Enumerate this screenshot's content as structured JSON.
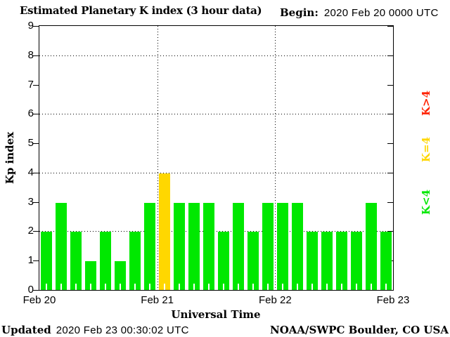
{
  "header": {
    "title": "Estimated Planetary K index (3 hour data)",
    "begin_label": "Begin:",
    "begin_value": "2020 Feb 20 0000 UTC"
  },
  "chart_data": {
    "type": "bar",
    "title": "Estimated Planetary K index (3 hour data)",
    "begin": "2020 Feb 20 0000 UTC",
    "xlabel": "Universal Time",
    "ylabel": "Kp index",
    "ylim": [
      0,
      9
    ],
    "yticks": [
      0,
      1,
      2,
      3,
      4,
      5,
      6,
      7,
      8,
      9
    ],
    "ygrid_dotted": [
      2,
      4,
      6,
      8
    ],
    "xticks": [
      "Feb 20",
      "Feb 21",
      "Feb 22",
      "Feb 23"
    ],
    "xgrid_dotted_days": [
      1,
      2
    ],
    "hours_per_bar": 3,
    "bars_per_day": 8,
    "categories": [
      "Feb 20 0000",
      "Feb 20 0300",
      "Feb 20 0600",
      "Feb 20 0900",
      "Feb 20 1200",
      "Feb 20 1500",
      "Feb 20 1800",
      "Feb 20 2100",
      "Feb 21 0000",
      "Feb 21 0300",
      "Feb 21 0600",
      "Feb 21 0900",
      "Feb 21 1200",
      "Feb 21 1500",
      "Feb 21 1800",
      "Feb 21 2100",
      "Feb 22 0000",
      "Feb 22 0300",
      "Feb 22 0600",
      "Feb 22 0900",
      "Feb 22 1200",
      "Feb 22 1500",
      "Feb 22 1800",
      "Feb 22 2100"
    ],
    "values": [
      2,
      3,
      2,
      1,
      2,
      1,
      2,
      3,
      4,
      3,
      3,
      3,
      2,
      3,
      2,
      3,
      3,
      3,
      2,
      2,
      2,
      2,
      3,
      2
    ],
    "colors": {
      "k_lt_4": "#00e800",
      "k_eq_4": "#ffd700",
      "k_gt_4": "#ff2200"
    },
    "grid": true,
    "legend_position": "right"
  },
  "legend": {
    "items": [
      {
        "label": "K>4",
        "color": "#ff2200"
      },
      {
        "label": "K=4",
        "color": "#ffd700"
      },
      {
        "label": "K<4",
        "color": "#00e800"
      }
    ]
  },
  "footer": {
    "updated_label": "Updated",
    "updated_value": "2020 Feb 23 00:30:02 UTC",
    "credit": "NOAA/SWPC Boulder, CO USA"
  }
}
